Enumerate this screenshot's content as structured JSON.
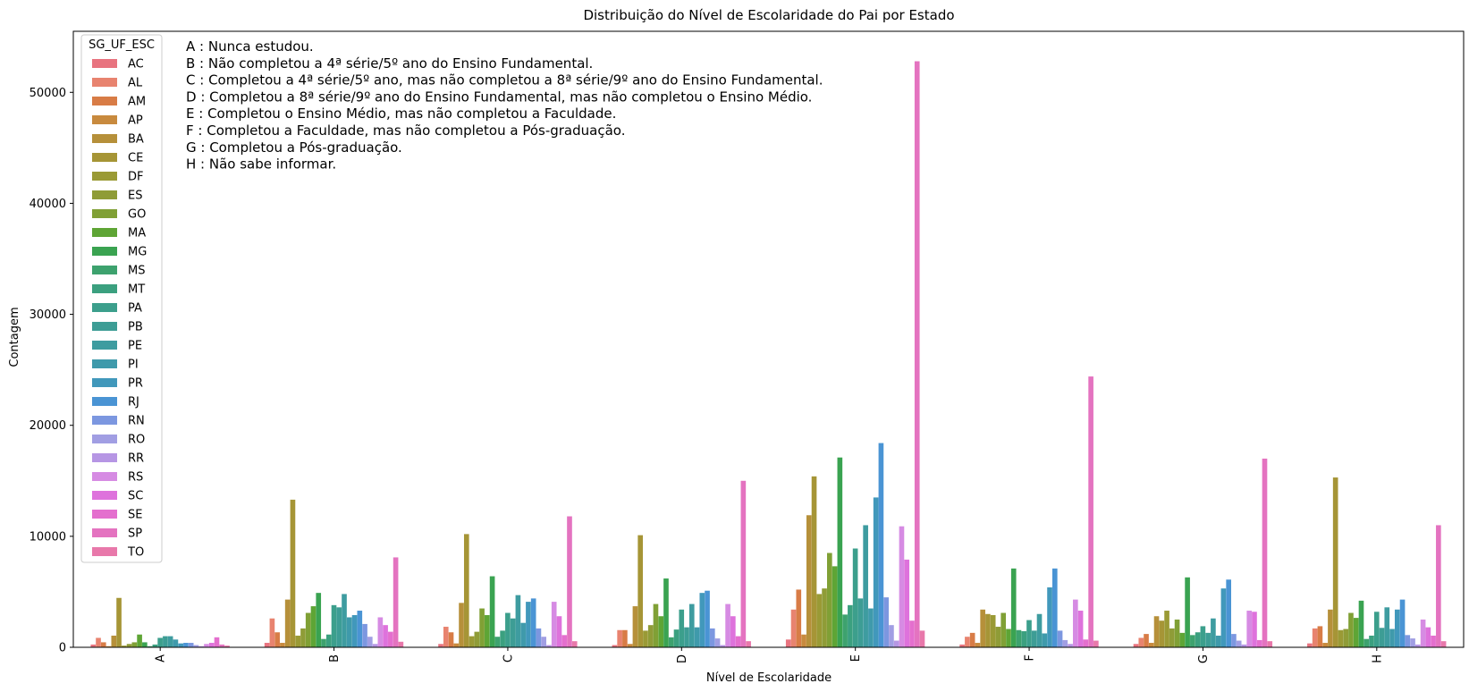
{
  "chart_data": {
    "type": "bar",
    "title": "Distribuição do Nível de Escolaridade do Pai por Estado",
    "xlabel": "Nível de Escolaridade",
    "ylabel": "Contagem",
    "ylim": [
      0,
      55500
    ],
    "yticks": [
      0,
      10000,
      20000,
      30000,
      40000,
      50000
    ],
    "categories": [
      "A",
      "B",
      "C",
      "D",
      "E",
      "F",
      "G",
      "H"
    ],
    "legend": {
      "title": "SG_UF_ESC",
      "placement": "upper-left"
    },
    "annotation_lines": [
      "A : Nunca estudou.",
      "B : Não completou a 4ª série/5º ano do  Ensino Fundamental.",
      "C : Completou a 4ª série/5º ano, mas não completou a 8ª série/9º ano do Ensino Fundamental.",
      "D : Completou a 8ª série/9º ano do Ensino Fundamental, mas não completou o Ensino Médio.",
      "E : Completou o Ensino Médio, mas não completou a Faculdade.",
      "F : Completou a Faculdade, mas não completou a Pós-graduação.",
      "G : Completou a Pós-graduação.",
      "H : Não sabe informar."
    ],
    "series": [
      {
        "name": "AC",
        "color": "#e8737f",
        "values": [
          250,
          400,
          300,
          200,
          700,
          250,
          300,
          350
        ]
      },
      {
        "name": "AL",
        "color": "#e8836f",
        "values": [
          850,
          2600,
          1850,
          1550,
          3400,
          950,
          850,
          1700
        ]
      },
      {
        "name": "AM",
        "color": "#d87c46",
        "values": [
          450,
          1350,
          1350,
          1550,
          5200,
          1300,
          1200,
          1900
        ]
      },
      {
        "name": "AP",
        "color": "#c88a3e",
        "values": [
          100,
          400,
          350,
          300,
          1150,
          400,
          400,
          400
        ]
      },
      {
        "name": "BA",
        "color": "#b6903a",
        "values": [
          1050,
          4300,
          4000,
          3700,
          11900,
          3400,
          2800,
          3400
        ]
      },
      {
        "name": "CE",
        "color": "#a69536",
        "values": [
          4450,
          13300,
          10200,
          10100,
          15400,
          3000,
          2400,
          15300
        ]
      },
      {
        "name": "DF",
        "color": "#9a9a35",
        "values": [
          150,
          1050,
          1000,
          1500,
          4800,
          2900,
          3300,
          1550
        ]
      },
      {
        "name": "ES",
        "color": "#8f9c37",
        "values": [
          300,
          1700,
          1400,
          2000,
          5300,
          1850,
          1700,
          1650
        ]
      },
      {
        "name": "GO",
        "color": "#80a035",
        "values": [
          450,
          3100,
          3500,
          3900,
          8500,
          3100,
          2500,
          3100
        ]
      },
      {
        "name": "MA",
        "color": "#5ea535",
        "values": [
          1150,
          3700,
          2900,
          2800,
          7300,
          1650,
          1300,
          2650
        ]
      },
      {
        "name": "MG",
        "color": "#3aa351",
        "values": [
          450,
          4900,
          6400,
          6200,
          17100,
          7100,
          6300,
          4200
        ]
      },
      {
        "name": "MS",
        "color": "#3da26e",
        "values": [
          100,
          750,
          950,
          900,
          2950,
          1550,
          1100,
          750
        ]
      },
      {
        "name": "MT",
        "color": "#3ba07f",
        "values": [
          250,
          1150,
          1500,
          1600,
          3800,
          1450,
          1350,
          1050
        ]
      },
      {
        "name": "PA",
        "color": "#3c9f8c",
        "values": [
          850,
          3800,
          3100,
          3400,
          8900,
          2450,
          1900,
          3200
        ]
      },
      {
        "name": "PB",
        "color": "#3d9d95",
        "values": [
          1000,
          3600,
          2600,
          1800,
          4400,
          1500,
          1300,
          1750
        ]
      },
      {
        "name": "PE",
        "color": "#3e9ca0",
        "values": [
          1000,
          4800,
          4700,
          3900,
          11000,
          3000,
          2600,
          3600
        ]
      },
      {
        "name": "PI",
        "color": "#3f9aab",
        "values": [
          700,
          2700,
          2200,
          1800,
          3500,
          1250,
          1050,
          1650
        ]
      },
      {
        "name": "PR",
        "color": "#4198bb",
        "values": [
          350,
          2900,
          4100,
          4900,
          13500,
          5400,
          5300,
          3400
        ]
      },
      {
        "name": "RJ",
        "color": "#4a94d4",
        "values": [
          400,
          3300,
          4400,
          5100,
          18400,
          7100,
          6100,
          4300
        ]
      },
      {
        "name": "RN",
        "color": "#7c97e0",
        "values": [
          400,
          2100,
          1700,
          1700,
          4500,
          1500,
          1200,
          1100
        ]
      },
      {
        "name": "RO",
        "color": "#a19ee3",
        "values": [
          200,
          950,
          950,
          800,
          2000,
          650,
          600,
          800
        ]
      },
      {
        "name": "RR",
        "color": "#b696e4",
        "values": [
          100,
          300,
          200,
          200,
          600,
          300,
          250,
          250
        ]
      },
      {
        "name": "RS",
        "color": "#d68be3",
        "values": [
          300,
          2700,
          4100,
          3900,
          10900,
          4300,
          3300,
          2500
        ]
      },
      {
        "name": "SC",
        "color": "#de72dc",
        "values": [
          400,
          2000,
          2800,
          2800,
          7900,
          3300,
          3200,
          1800
        ]
      },
      {
        "name": "SE",
        "color": "#e46fce",
        "values": [
          900,
          1400,
          1100,
          1000,
          2400,
          700,
          650,
          1050
        ]
      },
      {
        "name": "SP",
        "color": "#e473c0",
        "values": [
          250,
          8100,
          11800,
          15000,
          52800,
          24400,
          17000,
          11000
        ]
      },
      {
        "name": "TO",
        "color": "#e878aa",
        "values": [
          150,
          500,
          550,
          550,
          1500,
          600,
          550,
          550
        ]
      }
    ]
  }
}
